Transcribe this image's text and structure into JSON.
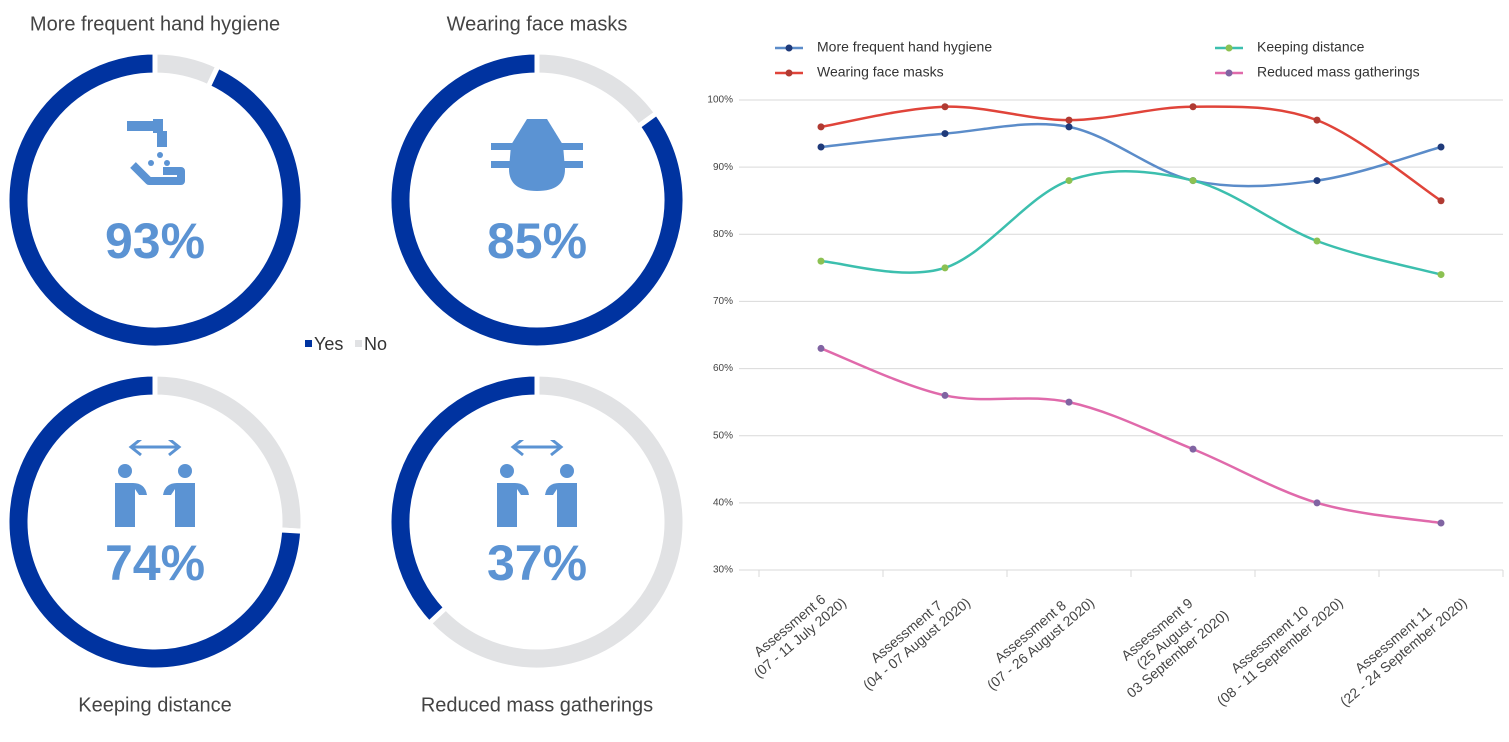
{
  "chart_data": [
    {
      "type": "donut",
      "title": "More frequent hand hygiene",
      "categories": [
        "Yes",
        "No"
      ],
      "values": [
        93,
        7
      ],
      "value_labels": [
        "93%",
        null
      ],
      "colors": [
        "#0033a0",
        "#e1e2e4"
      ]
    },
    {
      "type": "donut",
      "title": "Wearing face masks",
      "categories": [
        "Yes",
        "No"
      ],
      "values": [
        85,
        15
      ],
      "value_labels": [
        "85%",
        null
      ],
      "colors": [
        "#0033a0",
        "#e1e2e4"
      ]
    },
    {
      "type": "donut",
      "title": "Keeping distance",
      "categories": [
        "Yes",
        "No"
      ],
      "values": [
        74,
        26
      ],
      "value_labels": [
        "74%",
        null
      ],
      "colors": [
        "#0033a0",
        "#e1e2e4"
      ]
    },
    {
      "type": "donut",
      "title": "Reduced mass gatherings",
      "categories": [
        "Yes",
        "No"
      ],
      "values": [
        37,
        63
      ],
      "value_labels": [
        "37%",
        null
      ],
      "colors": [
        "#0033a0",
        "#e1e2e4"
      ]
    },
    {
      "type": "line",
      "categories": [
        "Assessment 6\n(07 - 11 July 2020)",
        "Assessment 7\n(04 - 07 August 2020)",
        "Assessment 8\n(07 - 26 August 2020)",
        "Assessment 9\n(25 August -\n03 September 2020)",
        "Assessment 10\n(08 - 11 September 2020)",
        "Assessment 11\n(22 - 24 September 2020)"
      ],
      "series": [
        {
          "name": "More frequent hand hygiene",
          "color": "#5b8cc9",
          "marker_color": "#1f3a7a",
          "values": [
            93,
            95,
            96,
            88,
            88,
            93
          ]
        },
        {
          "name": "Wearing face masks",
          "color": "#e0443a",
          "marker_color": "#b03a32",
          "values": [
            96,
            99,
            97,
            99,
            97,
            85
          ]
        },
        {
          "name": "Keeping distance",
          "color": "#3cbfae",
          "marker_color": "#8cc152",
          "values": [
            76,
            75,
            88,
            88,
            79,
            74
          ]
        },
        {
          "name": "Reduced mass gatherings",
          "color": "#e06aab",
          "marker_color": "#8064a2",
          "values": [
            63,
            56,
            55,
            48,
            40,
            37
          ]
        }
      ],
      "ylim": [
        30,
        100
      ],
      "yticks": [
        {
          "value": 30,
          "label": "30%"
        },
        {
          "value": 40,
          "label": "40%"
        },
        {
          "value": 50,
          "label": "50%"
        },
        {
          "value": 60,
          "label": "60%"
        },
        {
          "value": 70,
          "label": "70%"
        },
        {
          "value": 80,
          "label": "80%"
        },
        {
          "value": 90,
          "label": "90%"
        },
        {
          "value": 100,
          "label": "100%"
        }
      ],
      "grid": true,
      "legend": "top"
    }
  ]
}
